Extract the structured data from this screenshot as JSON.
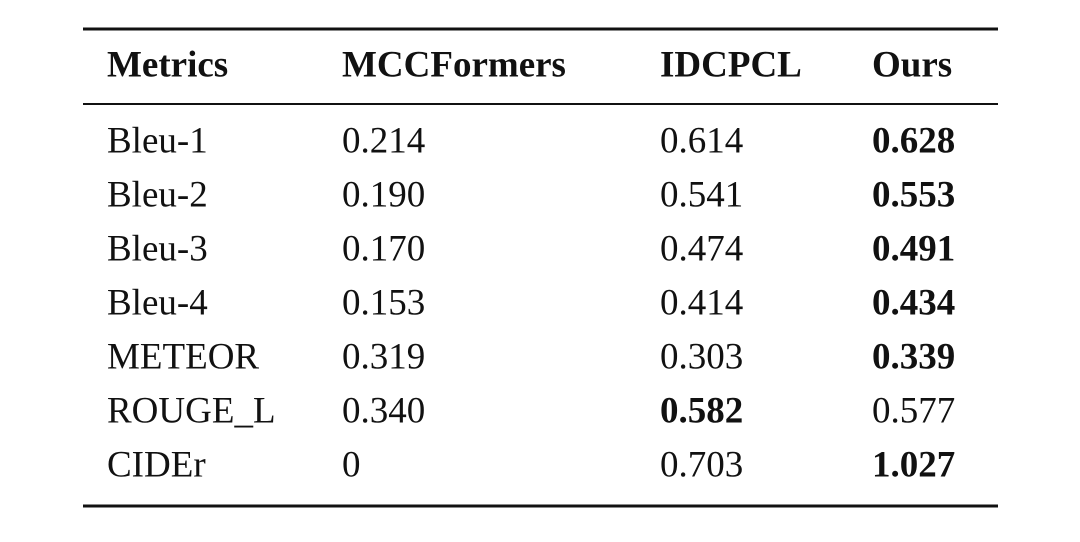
{
  "table": {
    "header": [
      "Metrics",
      "MCCFormers",
      "IDCPCL",
      "Ours"
    ],
    "rows": [
      [
        "Bleu-1",
        "0.214",
        "0.614",
        "0.628"
      ],
      [
        "Bleu-2",
        "0.190",
        "0.541",
        "0.553"
      ],
      [
        "Bleu-3",
        "0.170",
        "0.474",
        "0.491"
      ],
      [
        "Bleu-4",
        "0.153",
        "0.414",
        "0.434"
      ],
      [
        "METEOR",
        "0.319",
        "0.303",
        "0.339"
      ],
      [
        "ROUGE_L",
        "0.340",
        "0.582",
        "0.577"
      ],
      [
        "CIDEr",
        "0",
        "0.703",
        "1.027"
      ]
    ],
    "bold_cells": [
      [
        0,
        3
      ],
      [
        1,
        3
      ],
      [
        2,
        3
      ],
      [
        3,
        3
      ],
      [
        4,
        3
      ],
      [
        5,
        2
      ],
      [
        6,
        3
      ]
    ]
  }
}
